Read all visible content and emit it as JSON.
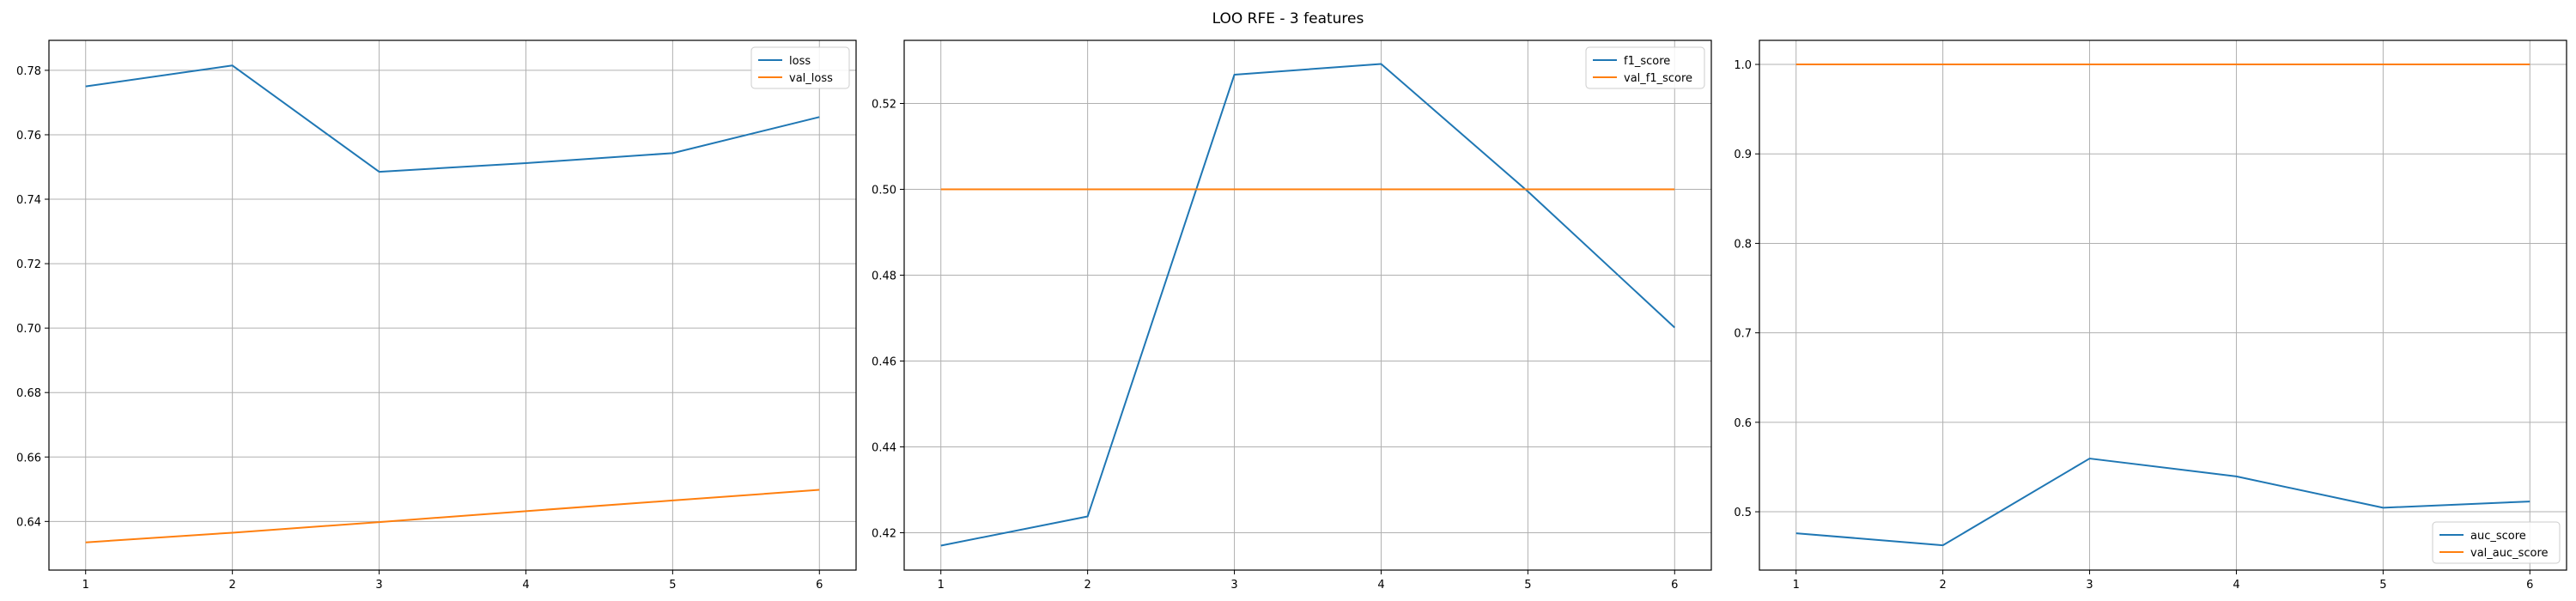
{
  "figure": {
    "suptitle": "LOO RFE - 3 features"
  },
  "chart_data": [
    {
      "type": "line",
      "x": [
        1,
        2,
        3,
        4,
        5,
        6
      ],
      "xlim": [
        0.75,
        6.25
      ],
      "ylim": [
        0.6249,
        0.7893
      ],
      "xticks": [
        1,
        2,
        3,
        4,
        5,
        6
      ],
      "yticks": [
        0.64,
        0.66,
        0.68,
        0.7,
        0.72,
        0.74,
        0.76,
        0.78
      ],
      "ytick_decimals": 2,
      "grid": true,
      "legend": "upper right",
      "series": [
        {
          "name": "loss",
          "color": "#1f77b4",
          "values": [
            0.775,
            0.7815,
            0.7485,
            0.7512,
            0.7543,
            0.7655
          ]
        },
        {
          "name": "val_loss",
          "color": "#ff7f0e",
          "values": [
            0.6335,
            0.6365,
            0.6398,
            0.6432,
            0.6465,
            0.6498
          ]
        }
      ]
    },
    {
      "type": "line",
      "x": [
        1,
        2,
        3,
        4,
        5,
        6
      ],
      "xlim": [
        0.75,
        6.25
      ],
      "ylim": [
        0.4113,
        0.5347
      ],
      "xticks": [
        1,
        2,
        3,
        4,
        5,
        6
      ],
      "yticks": [
        0.42,
        0.44,
        0.46,
        0.48,
        0.5,
        0.52
      ],
      "ytick_decimals": 2,
      "grid": true,
      "legend": "upper right",
      "series": [
        {
          "name": "f1_score",
          "color": "#1f77b4",
          "values": [
            0.417,
            0.4238,
            0.5267,
            0.5292,
            0.4995,
            0.4678
          ]
        },
        {
          "name": "val_f1_score",
          "color": "#ff7f0e",
          "values": [
            0.5,
            0.5,
            0.5,
            0.5,
            0.5,
            0.5
          ]
        }
      ]
    },
    {
      "type": "line",
      "x": [
        1,
        2,
        3,
        4,
        5,
        6
      ],
      "xlim": [
        0.75,
        6.25
      ],
      "ylim": [
        0.4348,
        1.0269
      ],
      "xticks": [
        1,
        2,
        3,
        4,
        5,
        6
      ],
      "yticks": [
        0.5,
        0.6,
        0.7,
        0.8,
        0.9,
        1.0
      ],
      "ytick_decimals": 1,
      "grid": true,
      "legend": "lower right",
      "series": [
        {
          "name": "auc_score",
          "color": "#1f77b4",
          "values": [
            0.476,
            0.4625,
            0.5595,
            0.5395,
            0.5045,
            0.5115
          ]
        },
        {
          "name": "val_auc_score",
          "color": "#ff7f0e",
          "values": [
            1.0,
            1.0,
            1.0,
            1.0,
            1.0,
            1.0
          ]
        }
      ]
    }
  ]
}
